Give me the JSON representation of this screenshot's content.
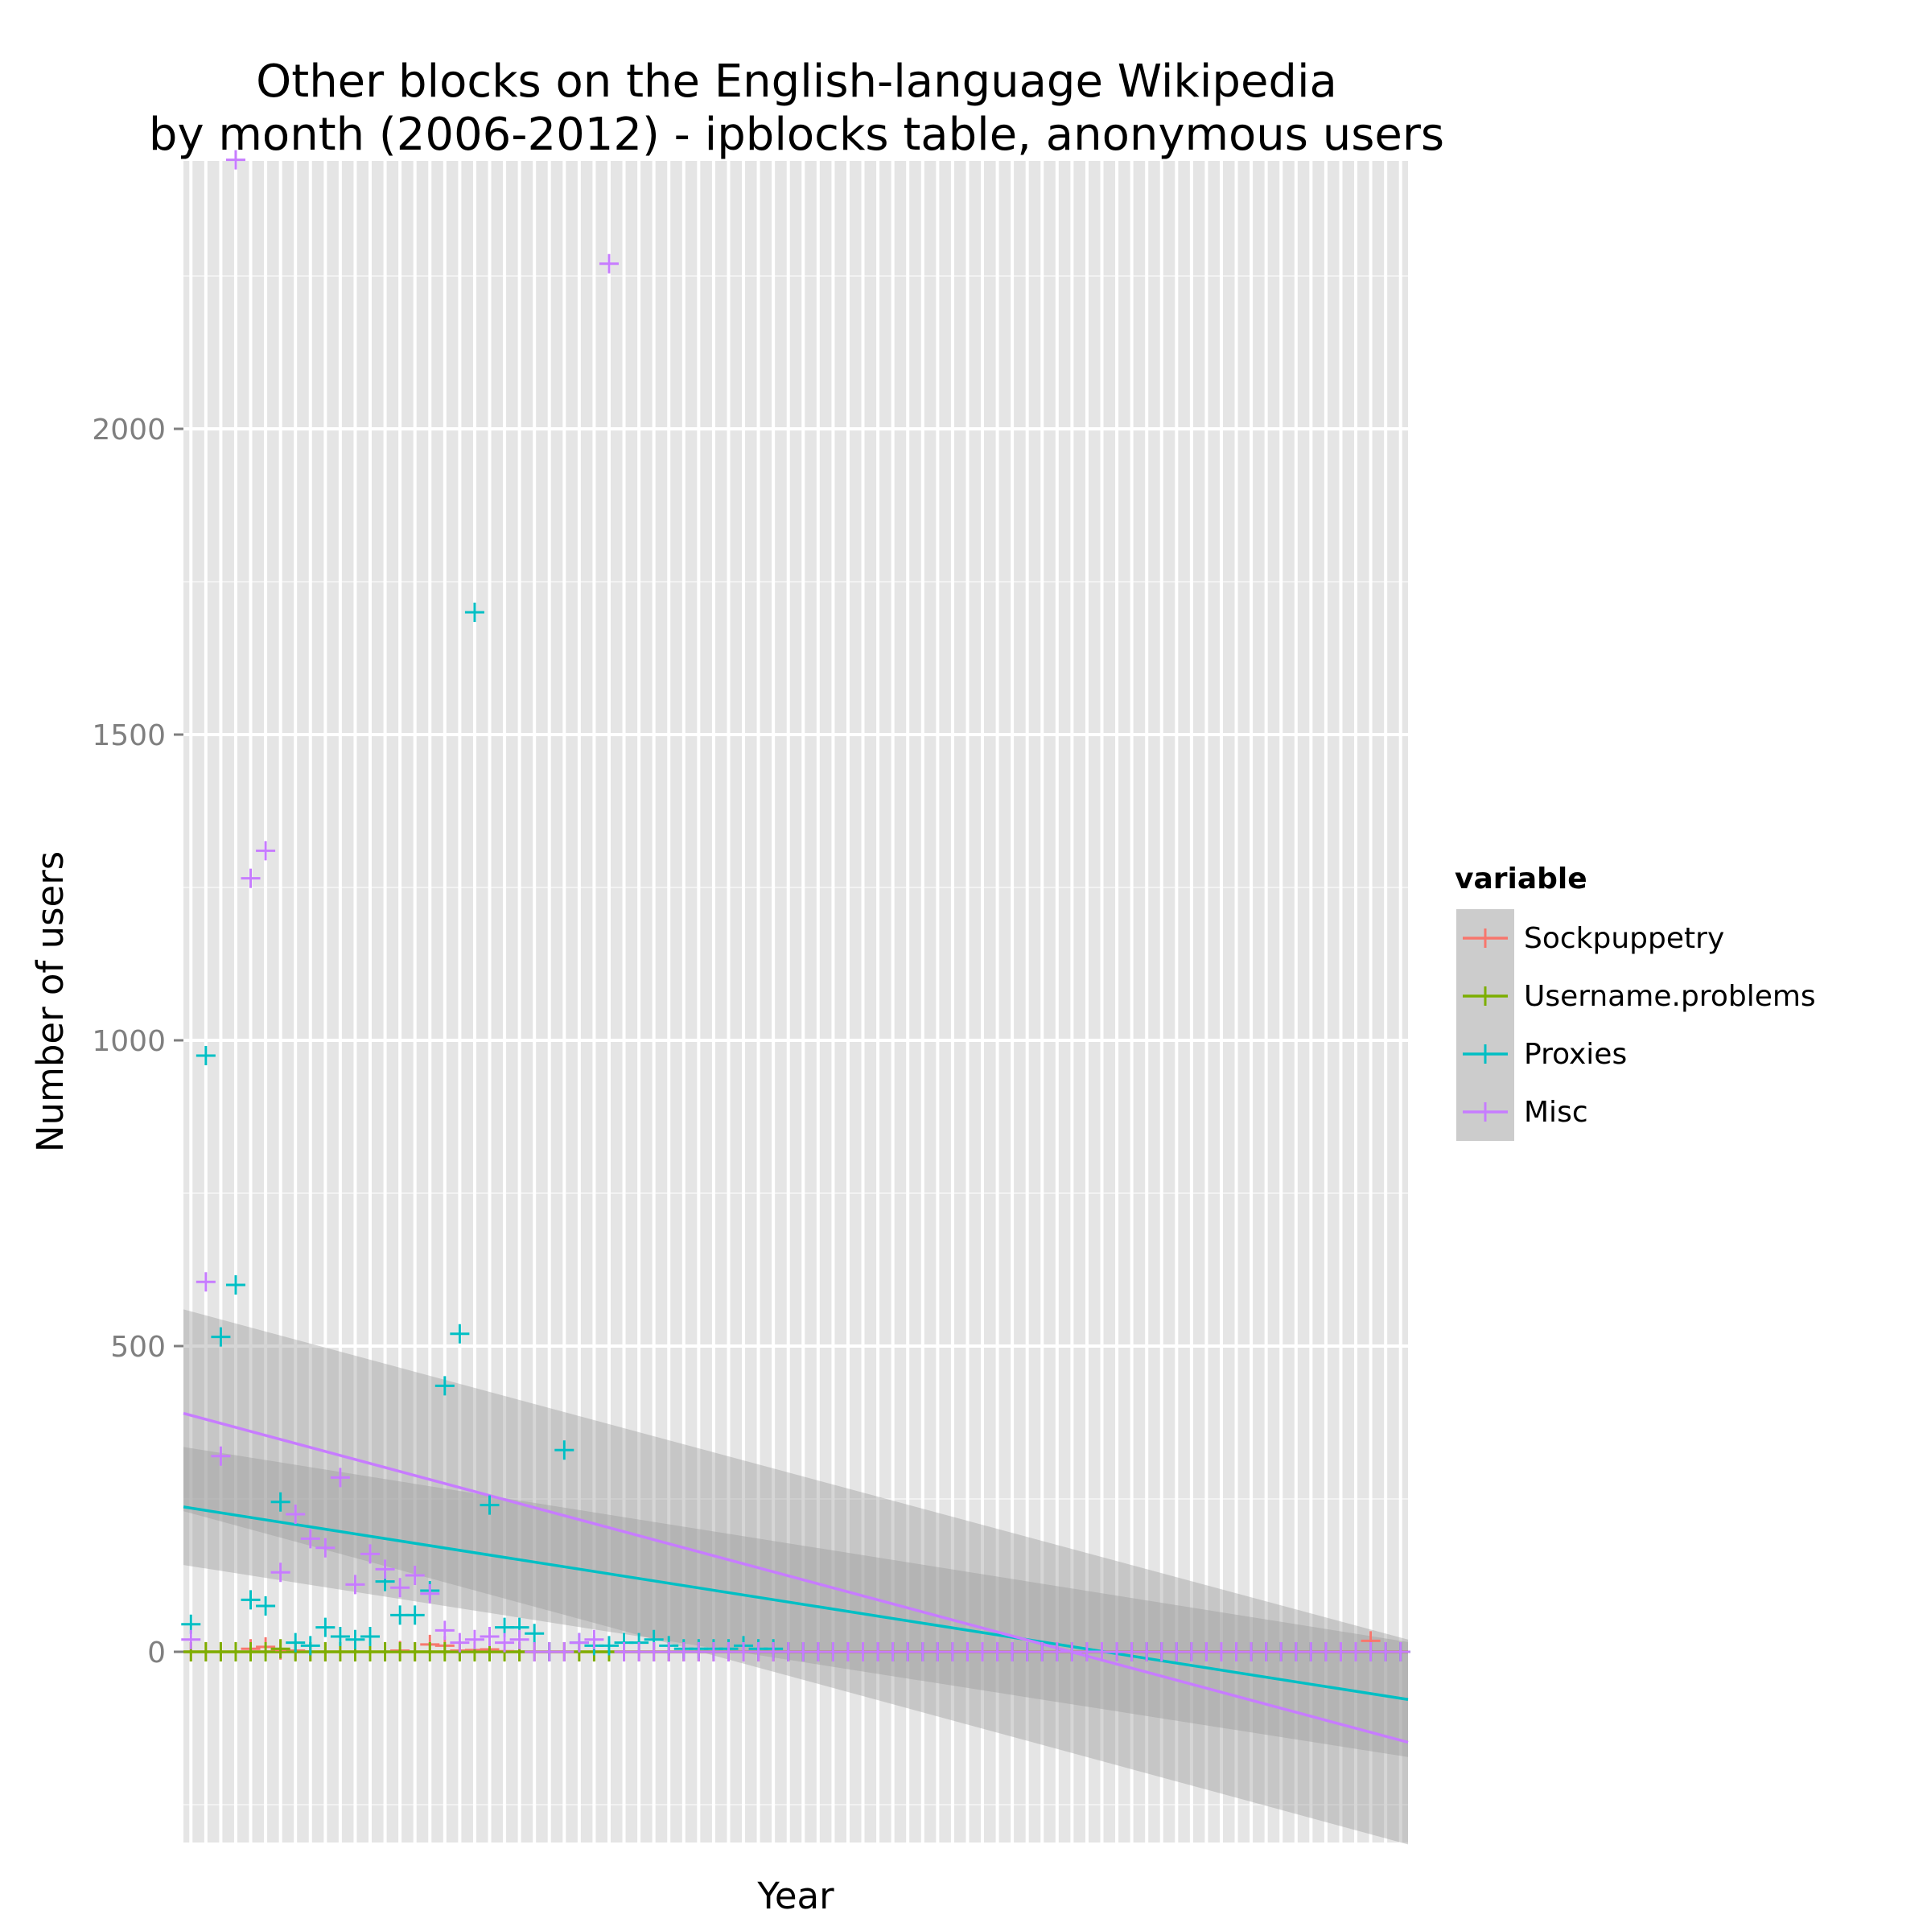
{
  "chart_data": {
    "type": "scatter",
    "title": "Other blocks on the English-language Wikipedia",
    "subtitle": "by month (2006-2012) - ipblocks table, anonymous users",
    "xlabel": "Year",
    "ylabel": "Number of users",
    "x_tick_labels": "none",
    "months": 82,
    "ylim": [
      -320,
      2450
    ],
    "yticks": [
      "0",
      "500",
      "1000",
      "1500",
      "2000"
    ],
    "grid": true,
    "legend": {
      "title": "variable",
      "position": "right"
    },
    "series": [
      {
        "name": "Sockpuppetry",
        "color": "#F8766D",
        "values": [
          0,
          0,
          0,
          0,
          5,
          8,
          3,
          2,
          0,
          0,
          0,
          0,
          0,
          0,
          2,
          0,
          12,
          10,
          2,
          3,
          4,
          1,
          0,
          0,
          0,
          0,
          0,
          0,
          0,
          0,
          0,
          0,
          0,
          0,
          0,
          0,
          0,
          0,
          0,
          0,
          0,
          0,
          0,
          0,
          0,
          0,
          0,
          0,
          0,
          0,
          0,
          0,
          0,
          0,
          0,
          0,
          0,
          0,
          0,
          0,
          0,
          0,
          0,
          0,
          0,
          0,
          0,
          0,
          0,
          0,
          0,
          0,
          0,
          0,
          0,
          0,
          0,
          0,
          0,
          18,
          0,
          0
        ],
        "trend": {
          "start": 0,
          "end": 0
        }
      },
      {
        "name": "Username.problems",
        "color": "#7CAE00",
        "values": [
          0,
          0,
          0,
          0,
          0,
          0,
          5,
          0,
          0,
          0,
          0,
          0,
          0,
          0,
          0,
          0,
          0,
          0,
          0,
          0,
          0,
          0,
          0,
          0,
          0,
          0,
          0,
          0,
          0,
          0,
          0,
          0,
          0,
          0,
          0,
          0,
          0,
          0,
          0,
          0,
          0,
          0,
          0,
          0,
          0,
          0,
          0,
          0,
          0,
          0,
          0,
          0,
          0,
          0,
          0,
          0,
          0,
          0,
          0,
          0,
          0,
          0,
          0,
          0,
          0,
          0,
          0,
          0,
          0,
          0,
          0,
          0,
          0,
          0,
          0,
          0,
          0,
          0,
          0,
          0,
          0,
          0
        ],
        "trend": {
          "start": 0,
          "end": 0
        }
      },
      {
        "name": "Proxies",
        "color": "#00BFC4",
        "values": [
          45,
          975,
          515,
          600,
          85,
          75,
          245,
          15,
          10,
          40,
          25,
          20,
          25,
          115,
          60,
          60,
          100,
          435,
          520,
          1700,
          240,
          40,
          40,
          30,
          0,
          330,
          15,
          10,
          10,
          15,
          15,
          20,
          10,
          5,
          5,
          5,
          5,
          10,
          5,
          5,
          0,
          0,
          0,
          0,
          0,
          0,
          0,
          0,
          0,
          0,
          0,
          0,
          0,
          0,
          0,
          0,
          0,
          0,
          0,
          0,
          0,
          0,
          0,
          0,
          0,
          0,
          0,
          0,
          0,
          0,
          0,
          0,
          0,
          0,
          0,
          0,
          0,
          0,
          0,
          0,
          0,
          0
        ],
        "trend": {
          "start": 237,
          "end": -78,
          "band_start": [
            142,
            335
          ],
          "band_end": [
            -172,
            16
          ]
        }
      },
      {
        "name": "Misc",
        "color": "#C77CFF",
        "values": [
          20,
          605,
          320,
          2440,
          1265,
          1310,
          130,
          225,
          185,
          170,
          285,
          110,
          160,
          135,
          105,
          125,
          95,
          35,
          15,
          20,
          25,
          15,
          20,
          0,
          0,
          0,
          15,
          20,
          2270,
          0,
          0,
          0,
          0,
          0,
          0,
          0,
          0,
          0,
          0,
          0,
          0,
          0,
          0,
          0,
          0,
          0,
          0,
          0,
          0,
          0,
          0,
          0,
          0,
          0,
          0,
          0,
          0,
          0,
          0,
          0,
          0,
          0,
          0,
          0,
          0,
          0,
          0,
          0,
          0,
          0,
          0,
          0,
          0,
          0,
          0,
          0,
          0,
          0,
          0,
          0,
          0,
          0
        ],
        "trend": {
          "start": 390,
          "end": -148,
          "band_start": [
            230,
            560
          ],
          "band_end": [
            -315,
            20
          ]
        }
      }
    ]
  }
}
